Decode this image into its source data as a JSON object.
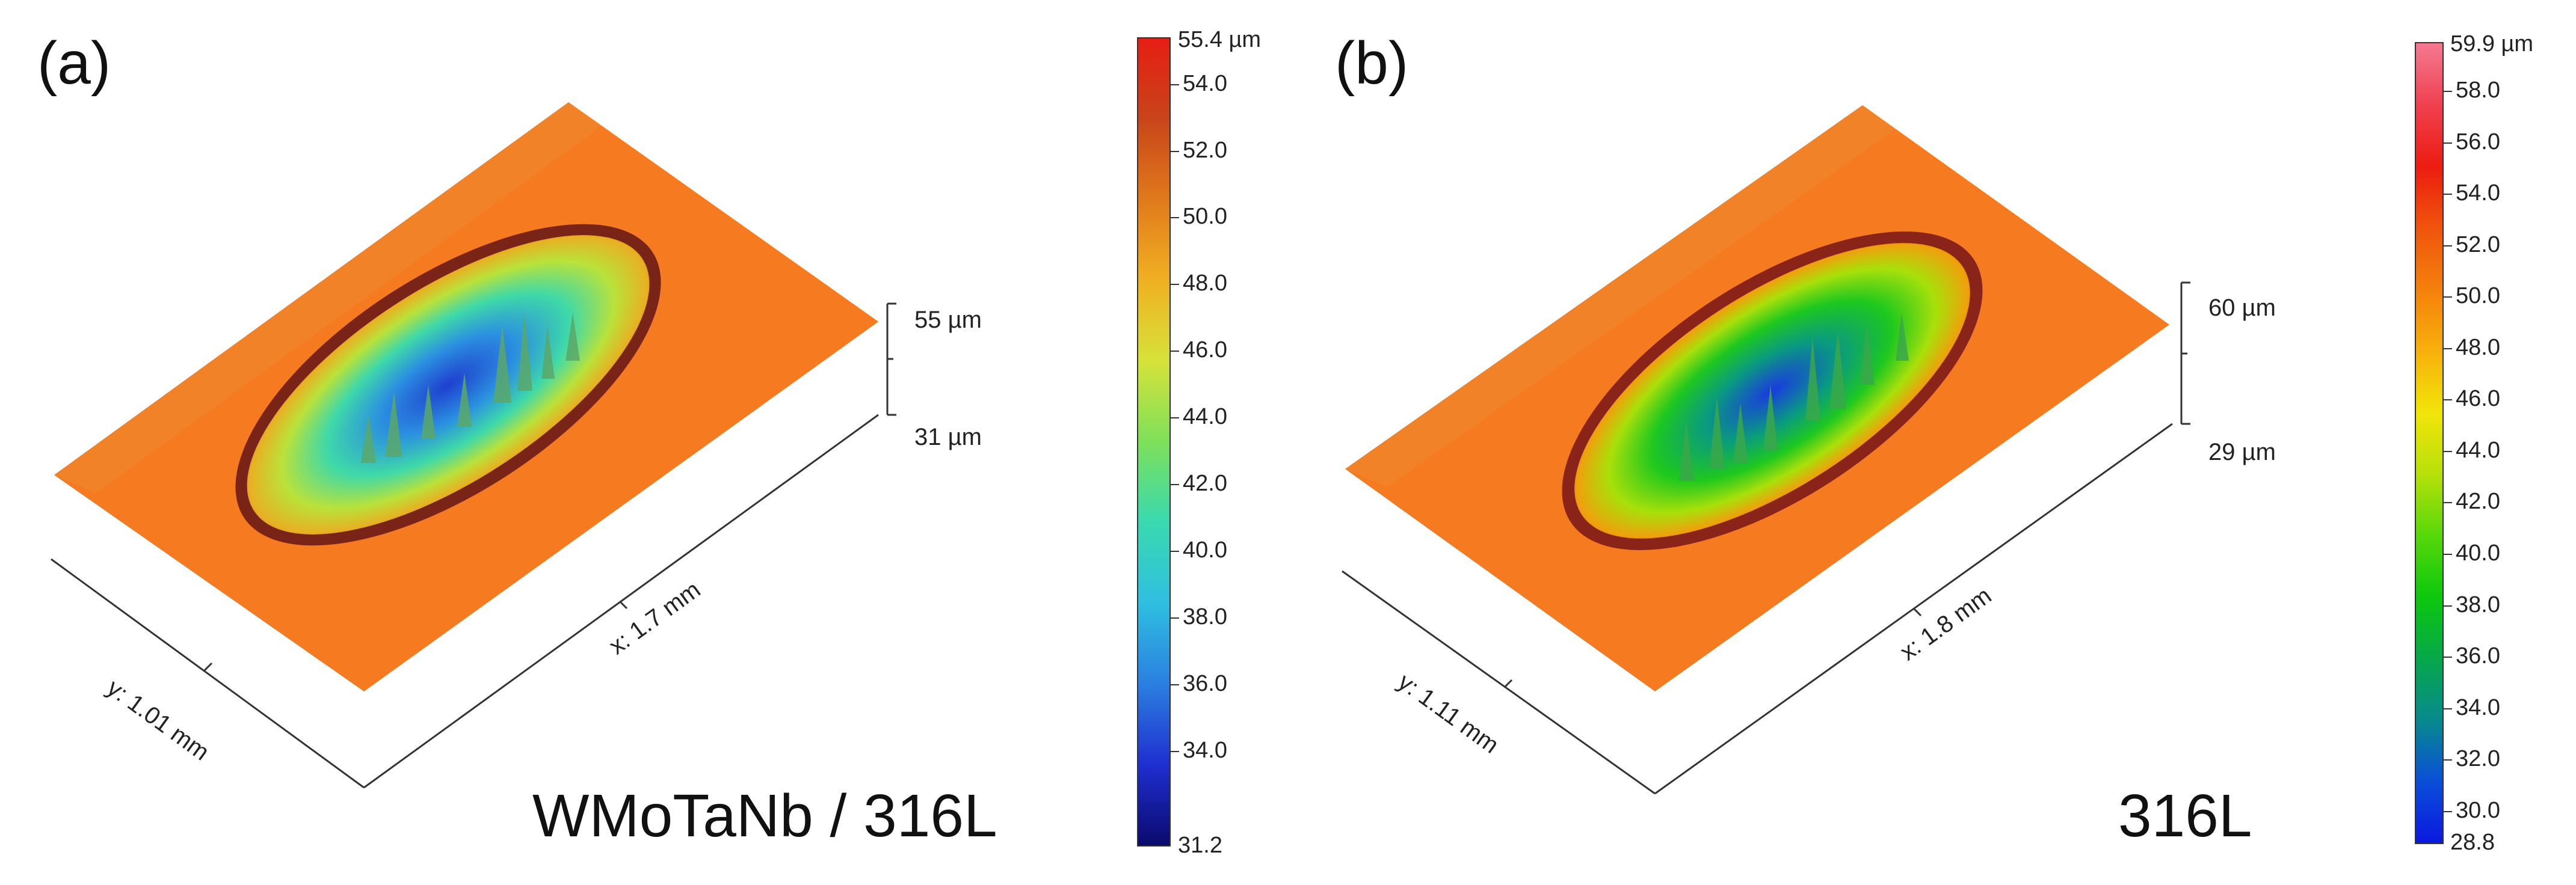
{
  "panels": [
    {
      "label": "(a)",
      "material": "WMoTaNb / 316L",
      "axis_y": "y: 1.01 mm",
      "axis_x": "x: 1.7 mm",
      "z_top": "55 µm",
      "z_bottom": "31 µm",
      "colorbar": {
        "max_label": "55.4 µm",
        "min_label": "31.2",
        "max": 55.4,
        "min": 31.2,
        "ticks": [
          "54.0",
          "52.0",
          "50.0",
          "48.0",
          "46.0",
          "44.0",
          "42.0",
          "40.0",
          "38.0",
          "36.0",
          "34.0"
        ],
        "tick_values": [
          54,
          52,
          50,
          48,
          46,
          44,
          42,
          40,
          38,
          36,
          34
        ],
        "colors": [
          "#0a0a6e",
          "#1f2fd0",
          "#2b7fe0",
          "#2fbfe0",
          "#39d9b0",
          "#7ee05a",
          "#d6e23a",
          "#f0b022",
          "#e07a1c",
          "#c8441a",
          "#e61e14"
        ]
      }
    },
    {
      "label": "(b)",
      "material": "316L",
      "axis_y": "y: 1.11 mm",
      "axis_x": "x: 1.8 mm",
      "z_top": "60 µm",
      "z_bottom": "29 µm",
      "colorbar": {
        "max_label": "59.9 µm",
        "min_label": "28.8",
        "max": 59.9,
        "min": 28.8,
        "ticks": [
          "58.0",
          "56.0",
          "54.0",
          "52.0",
          "50.0",
          "48.0",
          "46.0",
          "44.0",
          "42.0",
          "40.0",
          "38.0",
          "36.0",
          "34.0",
          "32.0",
          "30.0"
        ],
        "tick_values": [
          58,
          56,
          54,
          52,
          50,
          48,
          46,
          44,
          42,
          40,
          38,
          36,
          34,
          32,
          30
        ],
        "colors": [
          "#0a18e0",
          "#0a4fd8",
          "#078a8c",
          "#06a84a",
          "#0cc80c",
          "#58d80a",
          "#b8e00a",
          "#f2e40a",
          "#f8b00c",
          "#f5800c",
          "#f0540c",
          "#ec1c10",
          "#f04050",
          "#f47a90"
        ]
      }
    }
  ],
  "colors": {
    "surface": "#f57a20",
    "surface_edge": "#e2661a",
    "rim": "#8a2a1a"
  }
}
